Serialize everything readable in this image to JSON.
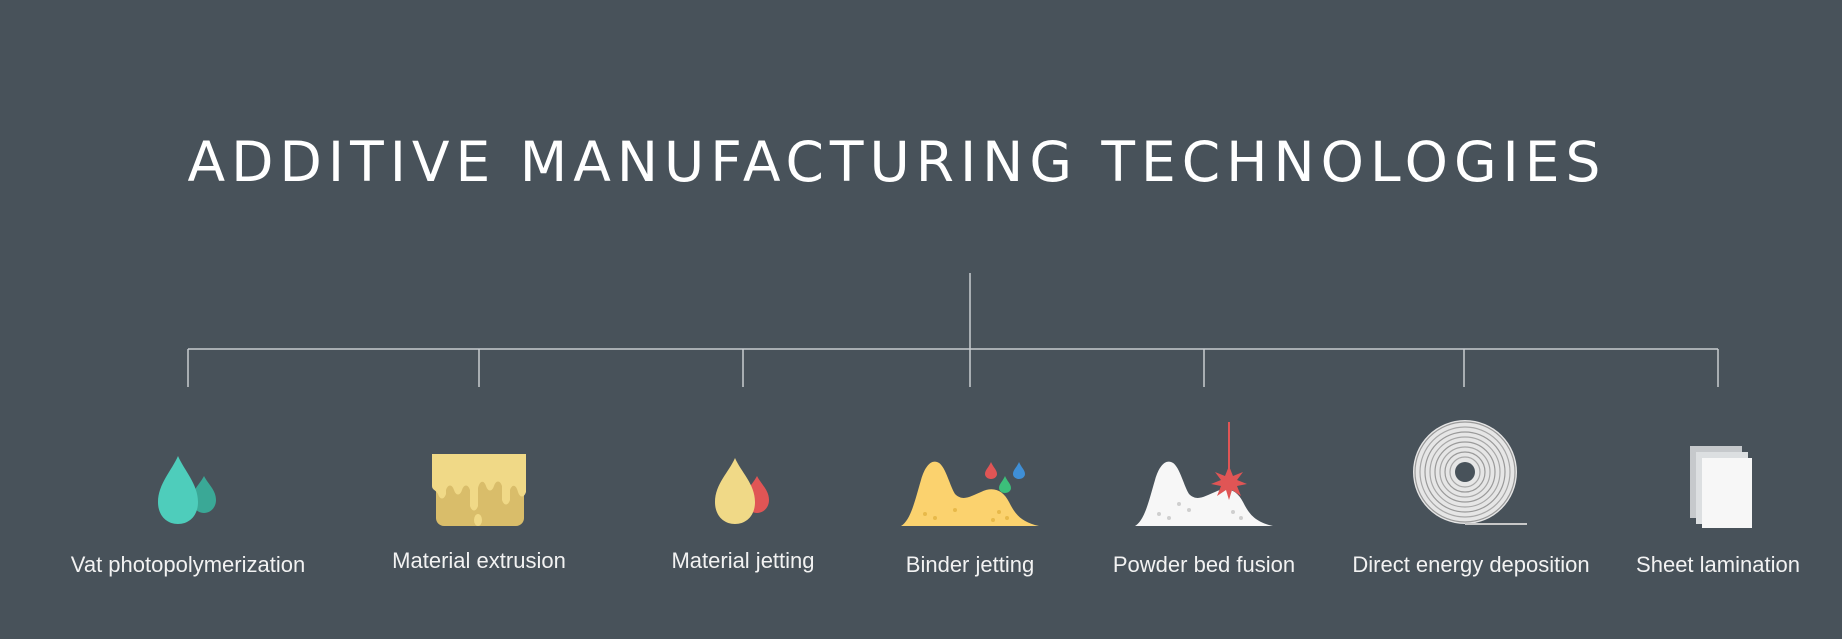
{
  "title": "ADDITIVE MANUFACTURING TECHNOLOGIES",
  "technologies": [
    {
      "label": "Vat photopolymerization",
      "icon": "resin-drops-icon"
    },
    {
      "label": "Material extrusion",
      "icon": "extruded-block-icon"
    },
    {
      "label": "Material jetting",
      "icon": "jetting-drops-icon"
    },
    {
      "label": "Binder jetting",
      "icon": "powder-with-binder-icon"
    },
    {
      "label": "Powder bed fusion",
      "icon": "powder-laser-icon"
    },
    {
      "label": "Direct energy deposition",
      "icon": "wire-spool-icon"
    },
    {
      "label": "Sheet lamination",
      "icon": "sheet-stack-icon"
    }
  ],
  "colors": {
    "background": "#48525a",
    "connector": "#c8ccd0",
    "teal": "#4ecdbb",
    "teal_dark": "#3aa896",
    "yellow": "#f0d987",
    "yellow_dark": "#d9bd6a",
    "red": "#e05555",
    "powder": "#fbd26e",
    "white": "#f7f7f7",
    "green": "#3cbf7a",
    "blue": "#3f8fd6"
  }
}
